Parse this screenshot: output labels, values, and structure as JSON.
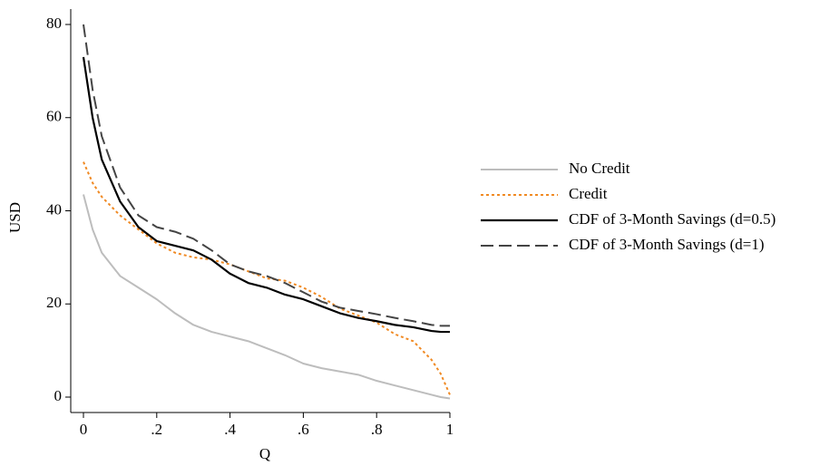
{
  "chart_data": {
    "type": "line",
    "x": [
      0,
      0.025,
      0.05,
      0.1,
      0.15,
      0.2,
      0.25,
      0.3,
      0.35,
      0.4,
      0.45,
      0.5,
      0.55,
      0.6,
      0.65,
      0.7,
      0.75,
      0.8,
      0.85,
      0.9,
      0.95,
      0.975,
      1
    ],
    "series": [
      {
        "name": "No Credit",
        "color": "#bdbdbd",
        "dash": "none",
        "width": 2,
        "values": [
          43.5,
          36,
          31,
          26,
          23.5,
          21,
          18,
          15.5,
          14,
          13,
          12,
          10.5,
          9,
          7.2,
          6.2,
          5.5,
          4.8,
          3.5,
          2.5,
          1.5,
          0.5,
          0,
          -0.3
        ]
      },
      {
        "name": "Credit",
        "color": "#f08a24",
        "dash": "3,3",
        "width": 2,
        "values": [
          50.5,
          46,
          43,
          39,
          36,
          33,
          31,
          30,
          29.5,
          28.5,
          27,
          25.5,
          25,
          23.5,
          21.5,
          19,
          17.5,
          16,
          13.5,
          12,
          8,
          5,
          0.5
        ]
      },
      {
        "name": "CDF of 3-Month Savings (d=0.5)",
        "color": "#000000",
        "dash": "none",
        "width": 2.2,
        "values": [
          73,
          60,
          51,
          42,
          36.5,
          33.5,
          32.5,
          31.5,
          29.5,
          26.5,
          24.5,
          23.5,
          22,
          21,
          19.5,
          18,
          17,
          16.3,
          15.5,
          15,
          14.2,
          14,
          14
        ]
      },
      {
        "name": "CDF of 3-Month Savings (d=1)",
        "color": "#444444",
        "dash": "14,6",
        "width": 2,
        "values": [
          80,
          66,
          56,
          45,
          39,
          36.5,
          35.5,
          34,
          31.5,
          28.5,
          27,
          26,
          24.5,
          22.5,
          20.5,
          19.2,
          18.5,
          17.8,
          17,
          16.3,
          15.5,
          15.3,
          15.3
        ]
      }
    ],
    "xlabel": "Q",
    "ylabel": "USD",
    "xlim": [
      0,
      1
    ],
    "ylim": [
      0,
      80
    ],
    "xticks": [
      0,
      {
        "value": 0.2,
        "label": ".2"
      },
      {
        "value": 0.4,
        "label": ".4"
      },
      {
        "value": 0.6,
        "label": ".6"
      },
      {
        "value": 0.8,
        "label": ".8"
      },
      1
    ],
    "yticks": [
      0,
      20,
      40,
      60,
      80
    ],
    "grid": false,
    "legend": "right"
  }
}
